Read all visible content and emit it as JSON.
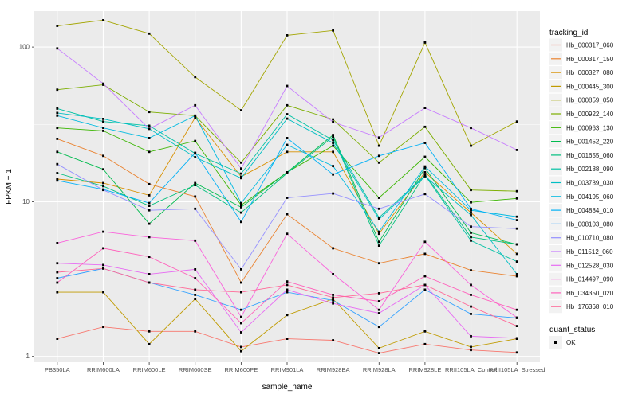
{
  "figure": {
    "background": "#FFFFFF",
    "panel_background": "#EBEBEB",
    "grid_color": "#FFFFFF",
    "axis_text_color": "#4D4D4D",
    "title_text_color": "#000000",
    "point_color": "#000000",
    "legend_key_fill": "#F2F2F2"
  },
  "axes": {
    "x_title": "sample_name",
    "y_title": "FPKM + 1",
    "y_ticks": [
      {
        "label": "1",
        "value": 1
      },
      {
        "label": "10",
        "value": 10
      },
      {
        "label": "100",
        "value": 100
      }
    ]
  },
  "legend": {
    "tracking_title": "tracking_id",
    "quant_title": "quant_status",
    "quant_items": [
      {
        "label": "OK",
        "shape": "filled-black-square"
      }
    ]
  },
  "chart_data": {
    "type": "line",
    "title": "",
    "xlabel": "sample_name",
    "ylabel": "FPKM + 1",
    "y_scale": "log10",
    "ylim": [
      0.92,
      171
    ],
    "grid": "on",
    "legend_position": "right",
    "point_shape": "small-black-square",
    "quant_status": "OK",
    "categories": [
      "PB350LA",
      "RRIM600LA",
      "RRIM600LE",
      "RRIM600SE",
      "RRIM600PE",
      "RRIM901LA",
      "RRIM928BA",
      "RRIM928LA",
      "RRIM928LE",
      "RRII105LA_Control",
      "RRII105LA_Stressed"
    ],
    "series": [
      {
        "name": "Hb_000317_060",
        "color": "#F8766D",
        "values": [
          1.3,
          1.55,
          1.45,
          1.45,
          1.15,
          1.3,
          1.27,
          1.05,
          1.2,
          1.1,
          1.06
        ]
      },
      {
        "name": "Hb_000317_150",
        "color": "#EA8331",
        "values": [
          25.5,
          19.8,
          13.0,
          10.8,
          3.0,
          8.3,
          5.0,
          4.0,
          4.6,
          3.6,
          3.3
        ]
      },
      {
        "name": "Hb_000327_080",
        "color": "#D89000",
        "values": [
          14.0,
          13.2,
          11.0,
          35.0,
          14.5,
          21.0,
          21.0,
          6.2,
          15.5,
          8.5,
          4.6
        ]
      },
      {
        "name": "Hb_000445_300",
        "color": "#C09B00",
        "values": [
          2.6,
          2.6,
          1.2,
          2.35,
          1.08,
          1.85,
          2.35,
          1.13,
          1.45,
          1.15,
          1.3
        ]
      },
      {
        "name": "Hb_000859_050",
        "color": "#A3A500",
        "values": [
          137,
          149,
          122,
          64,
          39,
          119,
          128,
          23,
          107,
          23,
          33
        ]
      },
      {
        "name": "Hb_000922_140",
        "color": "#7CAE00",
        "values": [
          53,
          57,
          38,
          36,
          17.9,
          42,
          34,
          17.9,
          30.5,
          11.9,
          11.7
        ]
      },
      {
        "name": "Hb_000963_130",
        "color": "#39B600",
        "values": [
          30,
          28.7,
          21,
          24.7,
          9.5,
          15.5,
          23,
          10.6,
          19.5,
          9.9,
          10.5
        ]
      },
      {
        "name": "Hb_001452_220",
        "color": "#00BB4E",
        "values": [
          21,
          16.2,
          7.2,
          13.2,
          9.2,
          15.5,
          27,
          5.5,
          16.5,
          6.3,
          5.3
        ]
      },
      {
        "name": "Hb_001655_060",
        "color": "#00BF7D",
        "values": [
          15.3,
          12.6,
          9.4,
          12.8,
          8.5,
          15.3,
          26.3,
          5.2,
          15.0,
          5.9,
          5.3
        ]
      },
      {
        "name": "Hb_002188_090",
        "color": "#00C1A3",
        "values": [
          40,
          33,
          31,
          20.5,
          15.2,
          36.8,
          25,
          7.9,
          14.8,
          5.6,
          4.1
        ]
      },
      {
        "name": "Hb_003739_030",
        "color": "#00BFC4",
        "values": [
          37.5,
          34.3,
          29.6,
          19.4,
          14.2,
          34.4,
          24,
          7.7,
          14.6,
          8.2,
          3.4
        ]
      },
      {
        "name": "Hb_004195_060",
        "color": "#00BAE0",
        "values": [
          36,
          30,
          25.8,
          36,
          9.8,
          23.3,
          17,
          6.4,
          16.9,
          8.8,
          8.0
        ]
      },
      {
        "name": "Hb_004884_010",
        "color": "#00B0F6",
        "values": [
          13.7,
          12.0,
          9.8,
          20.7,
          7.4,
          25.8,
          15,
          19.8,
          24,
          9.0,
          7.6
        ]
      },
      {
        "name": "Hb_008103_080",
        "color": "#35A2FF",
        "values": [
          3.2,
          3.7,
          3.0,
          2.5,
          2.0,
          2.6,
          2.3,
          1.55,
          2.7,
          1.88,
          1.77
        ]
      },
      {
        "name": "Hb_010710_080",
        "color": "#9590FF",
        "values": [
          17.5,
          11.9,
          8.8,
          9.0,
          3.65,
          10.6,
          11.3,
          9.0,
          11.2,
          6.9,
          6.7
        ]
      },
      {
        "name": "Hb_011512_060",
        "color": "#C77CFF",
        "values": [
          98,
          58,
          29.6,
          42,
          16.4,
          56,
          32.7,
          26,
          40.4,
          30,
          21.6
        ]
      },
      {
        "name": "Hb_012528_030",
        "color": "#E76BF3",
        "values": [
          4.0,
          3.9,
          3.4,
          3.65,
          1.43,
          2.7,
          2.2,
          1.9,
          2.9,
          1.35,
          1.31
        ]
      },
      {
        "name": "Hb_014497_090",
        "color": "#FA62DB",
        "values": [
          5.4,
          6.4,
          5.9,
          5.6,
          1.8,
          6.2,
          3.4,
          2.0,
          5.5,
          2.9,
          1.78
        ]
      },
      {
        "name": "Hb_034350_020",
        "color": "#FF62BC",
        "values": [
          3.0,
          5.0,
          4.4,
          3.2,
          1.64,
          3.05,
          2.5,
          2.27,
          3.3,
          2.5,
          2.0
        ]
      },
      {
        "name": "Hb_176368_010",
        "color": "#FF6A98",
        "values": [
          3.5,
          3.7,
          3.0,
          2.7,
          2.6,
          2.9,
          2.4,
          2.56,
          2.9,
          2.1,
          1.57
        ]
      }
    ]
  }
}
